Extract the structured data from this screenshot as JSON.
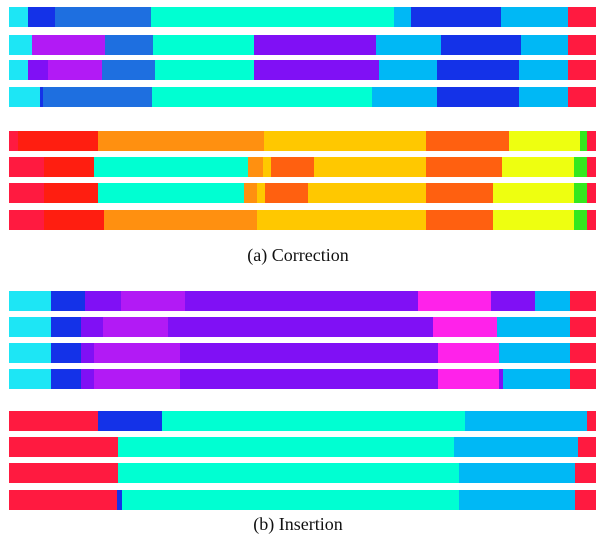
{
  "colors": {
    "cyan": "#1DE6F5",
    "blue": "#1432E8",
    "mid_blue": "#1E6FE0",
    "teal": "#00FFD2",
    "sky": "#00B8F5",
    "violet": "#8010F5",
    "purple": "#B21AF5",
    "red": "#FF1A40",
    "orange_red": "#FF1E10",
    "orange": "#FF9010",
    "amber": "#FFC800",
    "dark_orange": "#FF6010",
    "yellow": "#EEFF10",
    "green": "#34E81E",
    "magenta": "#FF22EA"
  },
  "panels": [
    {
      "caption": "(a) Correction",
      "groups": [
        [
          [
            [
              0,
              3.3,
              "cyan"
            ],
            [
              3.3,
              7.8,
              "blue"
            ],
            [
              7.8,
              24.2,
              "mid_blue"
            ],
            [
              24.2,
              65.6,
              "teal"
            ],
            [
              65.6,
              68.4,
              "sky"
            ],
            [
              68.4,
              83.8,
              "blue"
            ],
            [
              83.8,
              95.3,
              "sky"
            ],
            [
              95.3,
              100,
              "red"
            ]
          ],
          [
            [
              0,
              3.9,
              "cyan"
            ],
            [
              3.9,
              16.4,
              "purple"
            ],
            [
              16.4,
              24.6,
              "mid_blue"
            ],
            [
              24.6,
              41.8,
              "teal"
            ],
            [
              41.8,
              62.5,
              "violet"
            ],
            [
              62.5,
              73.6,
              "sky"
            ],
            [
              73.6,
              87.3,
              "blue"
            ],
            [
              87.3,
              95.3,
              "sky"
            ],
            [
              95.3,
              100,
              "red"
            ]
          ],
          [
            [
              0,
              3.3,
              "cyan"
            ],
            [
              3.3,
              6.7,
              "violet"
            ],
            [
              6.7,
              15.8,
              "purple"
            ],
            [
              15.8,
              24.8,
              "mid_blue"
            ],
            [
              24.8,
              41.8,
              "teal"
            ],
            [
              41.8,
              63.1,
              "violet"
            ],
            [
              63.1,
              72.9,
              "sky"
            ],
            [
              72.9,
              86.8,
              "blue"
            ],
            [
              86.8,
              95.3,
              "sky"
            ],
            [
              95.3,
              100,
              "red"
            ]
          ],
          [
            [
              0,
              5.3,
              "cyan"
            ],
            [
              5.3,
              5.8,
              "blue"
            ],
            [
              5.8,
              24.4,
              "mid_blue"
            ],
            [
              24.4,
              61.8,
              "teal"
            ],
            [
              61.8,
              72.9,
              "sky"
            ],
            [
              72.9,
              86.8,
              "blue"
            ],
            [
              86.8,
              95.3,
              "sky"
            ],
            [
              95.3,
              100,
              "red"
            ]
          ]
        ],
        [
          [
            [
              0,
              1.6,
              "red"
            ],
            [
              1.6,
              15.2,
              "orange_red"
            ],
            [
              15.2,
              43.4,
              "orange"
            ],
            [
              43.4,
              71.1,
              "amber"
            ],
            [
              71.1,
              85.2,
              "dark_orange"
            ],
            [
              85.2,
              97.3,
              "yellow"
            ],
            [
              97.3,
              98.5,
              "green"
            ],
            [
              98.5,
              100,
              "red"
            ]
          ],
          [
            [
              0,
              5.9,
              "red"
            ],
            [
              5.9,
              14.5,
              "orange_red"
            ],
            [
              14.5,
              40.8,
              "teal"
            ],
            [
              40.8,
              43.2,
              "orange"
            ],
            [
              43.2,
              44.6,
              "amber"
            ],
            [
              44.6,
              52,
              "dark_orange"
            ],
            [
              52,
              71.1,
              "amber"
            ],
            [
              71.1,
              84,
              "dark_orange"
            ],
            [
              84,
              96.2,
              "yellow"
            ],
            [
              96.2,
              98.5,
              "green"
            ],
            [
              98.5,
              100,
              "red"
            ]
          ],
          [
            [
              0,
              5.9,
              "red"
            ],
            [
              5.9,
              15.2,
              "orange_red"
            ],
            [
              15.2,
              40,
              "teal"
            ],
            [
              40,
              42.2,
              "orange"
            ],
            [
              42.2,
              43.6,
              "amber"
            ],
            [
              43.6,
              51,
              "dark_orange"
            ],
            [
              51,
              71.1,
              "amber"
            ],
            [
              71.1,
              82.5,
              "dark_orange"
            ],
            [
              82.5,
              96.2,
              "yellow"
            ],
            [
              96.2,
              98.5,
              "green"
            ],
            [
              98.5,
              100,
              "red"
            ]
          ],
          [
            [
              0,
              5.9,
              "red"
            ],
            [
              5.9,
              16.1,
              "orange_red"
            ],
            [
              16.1,
              42.3,
              "orange"
            ],
            [
              42.3,
              71.1,
              "amber"
            ],
            [
              71.1,
              82.5,
              "dark_orange"
            ],
            [
              82.5,
              96.2,
              "yellow"
            ],
            [
              96.2,
              98.5,
              "green"
            ],
            [
              98.5,
              100,
              "red"
            ]
          ]
        ]
      ]
    },
    {
      "caption": "(b) Insertion",
      "groups": [
        [
          [
            [
              0,
              7.1,
              "cyan"
            ],
            [
              7.1,
              12.9,
              "blue"
            ],
            [
              12.9,
              19,
              "violet"
            ],
            [
              19,
              30,
              "purple"
            ],
            [
              30,
              69.7,
              "violet"
            ],
            [
              69.7,
              82.1,
              "magenta"
            ],
            [
              82.1,
              89.6,
              "violet"
            ],
            [
              89.6,
              95.5,
              "sky"
            ],
            [
              95.5,
              100,
              "red"
            ]
          ],
          [
            [
              0,
              7.1,
              "cyan"
            ],
            [
              7.1,
              12.2,
              "blue"
            ],
            [
              12.2,
              16,
              "violet"
            ],
            [
              16,
              27.1,
              "purple"
            ],
            [
              27.1,
              72.3,
              "violet"
            ],
            [
              72.3,
              83.2,
              "magenta"
            ],
            [
              83.2,
              95.5,
              "sky"
            ],
            [
              95.5,
              100,
              "red"
            ]
          ],
          [
            [
              0,
              7.1,
              "cyan"
            ],
            [
              7.1,
              12.2,
              "blue"
            ],
            [
              12.2,
              14.4,
              "violet"
            ],
            [
              14.4,
              29.2,
              "purple"
            ],
            [
              29.2,
              73.1,
              "violet"
            ],
            [
              73.1,
              83.4,
              "magenta"
            ],
            [
              83.4,
              95.5,
              "sky"
            ],
            [
              95.5,
              100,
              "red"
            ]
          ],
          [
            [
              0,
              7.1,
              "cyan"
            ],
            [
              7.1,
              12.2,
              "blue"
            ],
            [
              12.2,
              14.4,
              "violet"
            ],
            [
              14.4,
              29.2,
              "purple"
            ],
            [
              29.2,
              73.1,
              "violet"
            ],
            [
              73.1,
              83.4,
              "magenta"
            ],
            [
              83.4,
              84.1,
              "violet"
            ],
            [
              84.1,
              95.5,
              "sky"
            ],
            [
              95.5,
              100,
              "red"
            ]
          ]
        ],
        [
          [
            [
              0,
              15.2,
              "red"
            ],
            [
              15.2,
              26.1,
              "blue"
            ],
            [
              26.1,
              77.6,
              "teal"
            ],
            [
              77.6,
              98.5,
              "sky"
            ],
            [
              98.5,
              100,
              "red"
            ]
          ],
          [
            [
              0,
              18.6,
              "red"
            ],
            [
              18.6,
              75.8,
              "teal"
            ],
            [
              75.8,
              97,
              "sky"
            ],
            [
              97,
              100,
              "red"
            ]
          ],
          [
            [
              0,
              18.6,
              "red"
            ],
            [
              18.6,
              76.6,
              "teal"
            ],
            [
              76.6,
              96.5,
              "sky"
            ],
            [
              96.5,
              100,
              "red"
            ]
          ],
          [
            [
              0,
              18.4,
              "red"
            ],
            [
              18.4,
              19.3,
              "blue"
            ],
            [
              19.3,
              76.6,
              "teal"
            ],
            [
              76.6,
              96.5,
              "sky"
            ],
            [
              96.5,
              100,
              "red"
            ]
          ]
        ]
      ]
    }
  ]
}
